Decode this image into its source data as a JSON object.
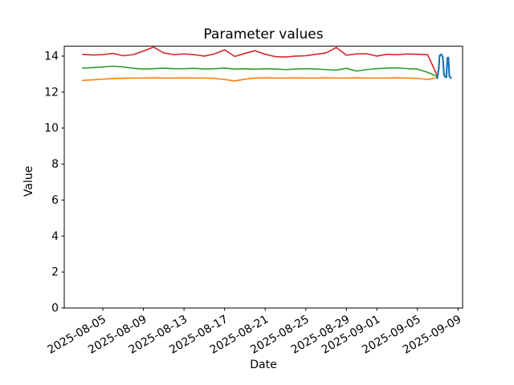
{
  "figure": {
    "title": "Parameter values",
    "background": "#ffffff",
    "spine_color": "#000000"
  },
  "chart_data": {
    "type": "line",
    "title": "Parameter values",
    "xlabel": "Date",
    "ylabel": "Value",
    "grid": false,
    "legend": "none",
    "x_unit": "days relative to 2025-08-05 tick",
    "xlim": [
      -3.8,
      35.45
    ],
    "ylim": [
      0,
      14.55
    ],
    "x_ticks": [
      {
        "pos": 0,
        "label": "2025-08-05"
      },
      {
        "pos": 4,
        "label": "2025-08-09"
      },
      {
        "pos": 8,
        "label": "2025-08-13"
      },
      {
        "pos": 12,
        "label": "2025-08-17"
      },
      {
        "pos": 16,
        "label": "2025-08-21"
      },
      {
        "pos": 20,
        "label": "2025-08-25"
      },
      {
        "pos": 24,
        "label": "2025-08-29"
      },
      {
        "pos": 27,
        "label": "2025-09-01"
      },
      {
        "pos": 31,
        "label": "2025-09-05"
      },
      {
        "pos": 35,
        "label": "2025-09-09"
      }
    ],
    "y_ticks": [
      0,
      2,
      4,
      6,
      8,
      10,
      12,
      14
    ],
    "x_tick_rotation_deg": 30,
    "series": [
      {
        "name": "series-red",
        "color": "#d62728",
        "line_width": 1.6,
        "x": [
          -2,
          -1,
          0,
          1,
          2,
          3,
          4,
          5,
          6,
          7,
          8,
          9,
          10,
          11,
          12,
          13,
          14,
          15,
          16,
          17,
          18,
          19,
          20,
          21,
          22,
          23,
          24,
          25,
          26,
          27,
          28,
          29,
          30,
          31,
          32,
          33
        ],
        "y": [
          14.1,
          14.06,
          14.08,
          14.15,
          14.02,
          14.08,
          14.28,
          14.5,
          14.18,
          14.08,
          14.12,
          14.08,
          14.0,
          14.12,
          14.35,
          13.98,
          14.15,
          14.3,
          14.1,
          13.97,
          13.95,
          14.0,
          14.02,
          14.1,
          14.18,
          14.48,
          14.05,
          14.12,
          14.13,
          14.0,
          14.1,
          14.08,
          14.12,
          14.1,
          14.08,
          12.85
        ]
      },
      {
        "name": "series-green",
        "color": "#2ca02c",
        "line_width": 1.6,
        "x": [
          -2,
          -1,
          0,
          1,
          2,
          3,
          4,
          5,
          6,
          7,
          8,
          9,
          10,
          11,
          12,
          13,
          14,
          15,
          16,
          17,
          18,
          19,
          20,
          21,
          22,
          23,
          24,
          25,
          26,
          27,
          28,
          29,
          30,
          31,
          32,
          33
        ],
        "y": [
          13.33,
          13.36,
          13.4,
          13.44,
          13.4,
          13.32,
          13.28,
          13.3,
          13.33,
          13.3,
          13.3,
          13.32,
          13.28,
          13.3,
          13.33,
          13.28,
          13.3,
          13.27,
          13.3,
          13.28,
          13.25,
          13.28,
          13.3,
          13.28,
          13.25,
          13.22,
          13.32,
          13.17,
          13.25,
          13.3,
          13.33,
          13.35,
          13.3,
          13.28,
          13.1,
          12.85
        ]
      },
      {
        "name": "series-orange",
        "color": "#ff7f0e",
        "line_width": 1.6,
        "x": [
          -2,
          -1,
          0,
          1,
          2,
          3,
          4,
          5,
          6,
          7,
          8,
          9,
          10,
          11,
          12,
          13,
          14,
          15,
          16,
          17,
          18,
          19,
          20,
          21,
          22,
          23,
          24,
          25,
          26,
          27,
          28,
          29,
          30,
          31,
          32,
          33
        ],
        "y": [
          12.65,
          12.68,
          12.72,
          12.75,
          12.77,
          12.78,
          12.78,
          12.79,
          12.78,
          12.78,
          12.79,
          12.78,
          12.78,
          12.76,
          12.7,
          12.62,
          12.72,
          12.78,
          12.79,
          12.78,
          12.78,
          12.79,
          12.78,
          12.78,
          12.79,
          12.78,
          12.78,
          12.79,
          12.78,
          12.78,
          12.78,
          12.79,
          12.78,
          12.76,
          12.7,
          12.8
        ]
      },
      {
        "name": "series-blue",
        "color": "#1f77b4",
        "line_width": 2.2,
        "x": [
          32.95,
          33.1,
          33.18,
          33.35,
          33.5,
          33.62,
          33.72,
          33.85,
          33.95,
          34.05,
          34.15,
          34.3
        ],
        "y": [
          12.77,
          13.3,
          14.02,
          14.1,
          13.95,
          12.95,
          12.85,
          12.82,
          13.9,
          13.92,
          12.88,
          12.78
        ]
      }
    ]
  }
}
